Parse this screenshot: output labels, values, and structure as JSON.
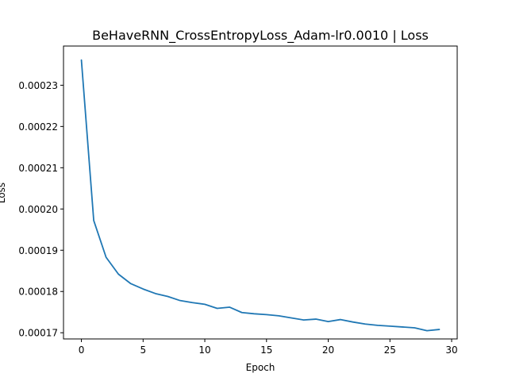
{
  "chart_data": {
    "type": "line",
    "title": "BeHaveRNN_CrossEntropyLoss_Adam-lr0.0010 | Loss",
    "xlabel": "Epoch",
    "ylabel": "Loss",
    "xlim": [
      -1.45,
      30.45
    ],
    "ylim": [
      0.0001685,
      0.0002395
    ],
    "xticks": [
      0,
      5,
      10,
      15,
      20,
      25,
      30
    ],
    "xtick_labels": [
      "0",
      "5",
      "10",
      "15",
      "20",
      "25",
      "30"
    ],
    "yticks": [
      0.00017,
      0.00018,
      0.00019,
      0.0002,
      0.00021,
      0.00022,
      0.00023
    ],
    "ytick_labels": [
      "0.00017",
      "0.00018",
      "0.00019",
      "0.00020",
      "0.00021",
      "0.00022",
      "0.00023"
    ],
    "grid": false,
    "series": [
      {
        "color": "#1f77b4",
        "x": [
          0,
          1,
          2,
          3,
          4,
          5,
          6,
          7,
          8,
          9,
          10,
          11,
          12,
          13,
          14,
          15,
          16,
          17,
          18,
          19,
          20,
          21,
          22,
          23,
          24,
          25,
          26,
          27,
          28,
          29
        ],
        "values": [
          0.0002361,
          0.0001972,
          0.0001883,
          0.0001842,
          0.0001819,
          0.0001806,
          0.0001795,
          0.0001788,
          0.0001778,
          0.0001773,
          0.0001769,
          0.0001759,
          0.0001762,
          0.0001749,
          0.0001746,
          0.0001744,
          0.0001741,
          0.0001736,
          0.0001731,
          0.0001733,
          0.0001727,
          0.0001732,
          0.0001726,
          0.0001721,
          0.0001718,
          0.0001716,
          0.0001714,
          0.0001712,
          0.0001705,
          0.0001708
        ]
      }
    ]
  }
}
